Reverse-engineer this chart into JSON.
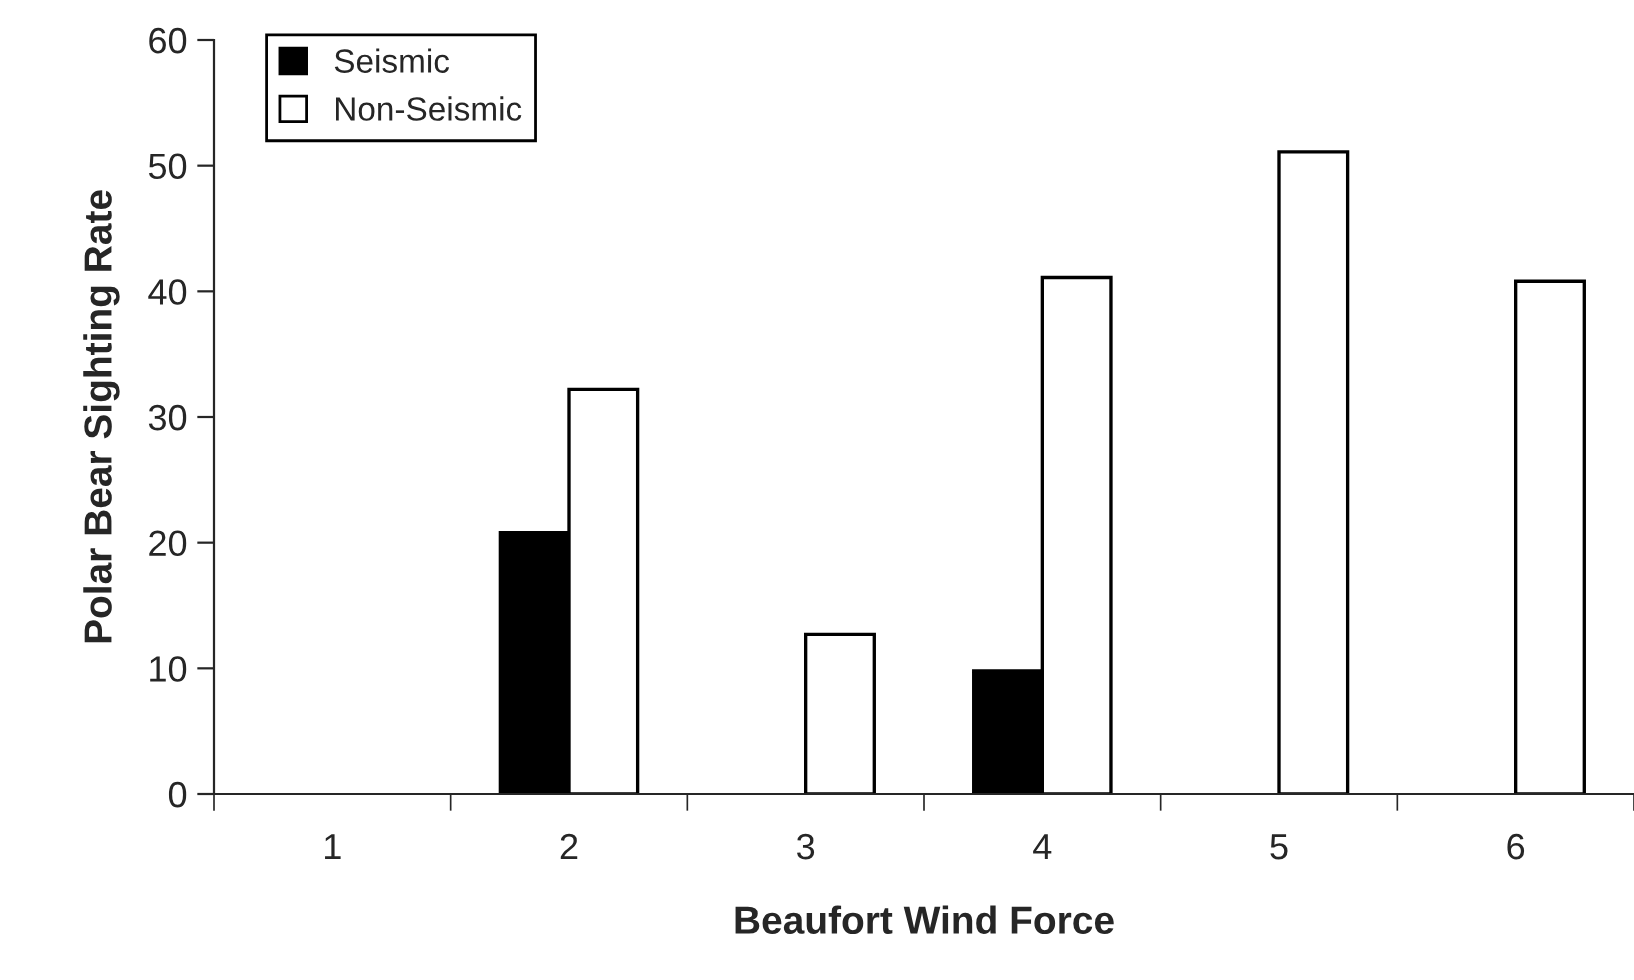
{
  "chart_data": {
    "type": "bar",
    "xlabel": "Beaufort Wind Force",
    "ylabel": "Polar Bear Sighting Rate",
    "categories": [
      "1",
      "2",
      "3",
      "4",
      "5",
      "6"
    ],
    "series": [
      {
        "name": "Seismic",
        "color": "#000000",
        "values": [
          0,
          20.8,
          0,
          9.8,
          0,
          0
        ]
      },
      {
        "name": "Non-Seismic",
        "color": "#ffffff",
        "values": [
          0,
          32.2,
          12.7,
          41.1,
          51.1,
          40.8
        ]
      }
    ],
    "ylim": [
      0,
      60
    ],
    "yticks": [
      0,
      10,
      20,
      30,
      40,
      50,
      60
    ],
    "grid": false,
    "legend": "top left"
  }
}
